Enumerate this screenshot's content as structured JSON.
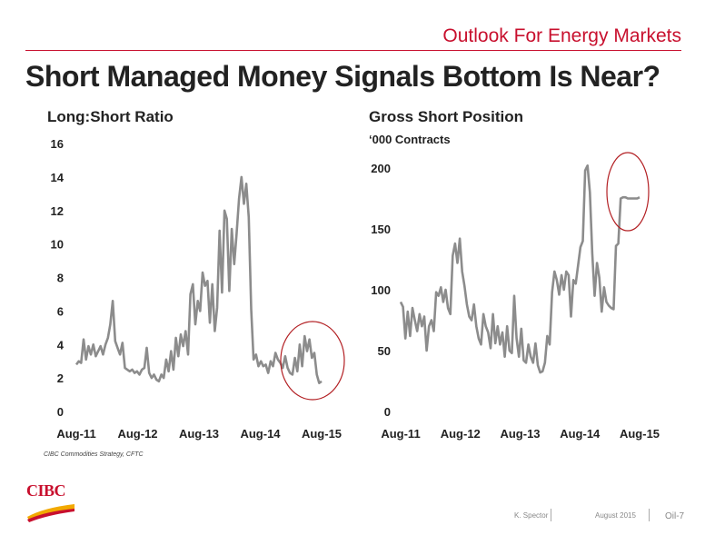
{
  "header": {
    "title": "Outlook For Energy Markets"
  },
  "slide_title": "Short Managed Money Signals Bottom Is Near?",
  "source": "CIBC Commodities Strategy, CFTC",
  "footer": {
    "author": "K. Spector",
    "date": "August 2015",
    "page": "Oil-7"
  },
  "logo": {
    "text": "CIBC"
  },
  "colors": {
    "accent": "#c8102e",
    "line": "#8c8c8c",
    "circle": "#b32024"
  },
  "chart_data": [
    {
      "type": "line",
      "title": "Long:Short Ratio",
      "subtitle": "",
      "ylim": [
        0,
        16
      ],
      "yticks": [
        0,
        2,
        4,
        6,
        8,
        10,
        12,
        14,
        16
      ],
      "xtick_labels": [
        "Aug-11",
        "Aug-12",
        "Aug-13",
        "Aug-14",
        "Aug-15"
      ],
      "x": [
        2011.58,
        2011.62,
        2011.66,
        2011.7,
        2011.74,
        2011.78,
        2011.82,
        2011.86,
        2011.9,
        2011.94,
        2011.98,
        2012.02,
        2012.06,
        2012.1,
        2012.14,
        2012.18,
        2012.22,
        2012.26,
        2012.3,
        2012.34,
        2012.38,
        2012.42,
        2012.46,
        2012.5,
        2012.54,
        2012.58,
        2012.62,
        2012.66,
        2012.7,
        2012.74,
        2012.78,
        2012.82,
        2012.86,
        2012.9,
        2012.94,
        2012.98,
        2013.02,
        2013.06,
        2013.1,
        2013.14,
        2013.18,
        2013.22,
        2013.26,
        2013.3,
        2013.34,
        2013.38,
        2013.42,
        2013.46,
        2013.5,
        2013.54,
        2013.58,
        2013.62,
        2013.66,
        2013.7,
        2013.74,
        2013.78,
        2013.82,
        2013.86,
        2013.9,
        2013.94,
        2013.98,
        2014.02,
        2014.06,
        2014.1,
        2014.14,
        2014.18,
        2014.22,
        2014.26,
        2014.3,
        2014.34,
        2014.38,
        2014.42,
        2014.46,
        2014.5,
        2014.54,
        2014.58,
        2014.62,
        2014.66,
        2014.7,
        2014.74,
        2014.78,
        2014.82,
        2014.86,
        2014.9,
        2014.94,
        2014.98,
        2015.02,
        2015.06,
        2015.1,
        2015.14,
        2015.18,
        2015.22,
        2015.26,
        2015.3,
        2015.34,
        2015.38,
        2015.42,
        2015.46,
        2015.5,
        2015.54,
        2015.58,
        2015.62
      ],
      "series": [
        {
          "values": [
            2.8,
            3.0,
            2.9,
            4.3,
            3.1,
            3.9,
            3.4,
            4.0,
            3.3,
            3.6,
            3.9,
            3.4,
            4.0,
            4.4,
            5.2,
            6.6,
            4.2,
            3.8,
            3.4,
            4.1,
            2.6,
            2.5,
            2.4,
            2.5,
            2.3,
            2.4,
            2.2,
            2.5,
            2.6,
            3.8,
            2.3,
            2.0,
            2.2,
            1.9,
            1.8,
            2.2,
            2.0,
            3.1,
            2.4,
            3.6,
            2.5,
            4.4,
            3.3,
            4.6,
            3.9,
            4.8,
            3.4,
            7.0,
            7.6,
            5.2,
            6.6,
            6.0,
            8.3,
            7.5,
            7.8,
            5.3,
            7.6,
            4.8,
            6.2,
            10.8,
            7.1,
            12.0,
            11.5,
            7.2,
            10.9,
            8.8,
            10.6,
            12.7,
            14.0,
            12.4,
            13.6,
            11.6,
            6.1,
            3.1,
            3.4,
            2.7,
            3.0,
            2.7,
            2.8,
            2.3,
            3.0,
            2.7,
            3.5,
            3.1,
            2.9,
            2.6,
            3.3,
            2.6,
            2.3,
            2.2,
            3.2,
            2.4,
            4.0,
            2.7,
            4.5,
            3.6,
            4.3,
            3.2,
            3.5,
            2.2,
            1.7,
            1.8
          ]
        }
      ]
    },
    {
      "type": "line",
      "title": "Gross Short Position",
      "subtitle": "‘000 Contracts",
      "ylim": [
        0,
        200
      ],
      "yticks": [
        0,
        50,
        100,
        150,
        200
      ],
      "xtick_labels": [
        "Aug-11",
        "Aug-12",
        "Aug-13",
        "Aug-14",
        "Aug-15"
      ],
      "x": [
        2011.58,
        2011.62,
        2011.66,
        2011.7,
        2011.74,
        2011.78,
        2011.82,
        2011.86,
        2011.9,
        2011.94,
        2011.98,
        2012.02,
        2012.06,
        2012.1,
        2012.14,
        2012.18,
        2012.22,
        2012.26,
        2012.3,
        2012.34,
        2012.38,
        2012.42,
        2012.46,
        2012.5,
        2012.54,
        2012.58,
        2012.62,
        2012.66,
        2012.7,
        2012.74,
        2012.78,
        2012.82,
        2012.86,
        2012.9,
        2012.94,
        2012.98,
        2013.02,
        2013.06,
        2013.1,
        2013.14,
        2013.18,
        2013.22,
        2013.26,
        2013.3,
        2013.34,
        2013.38,
        2013.42,
        2013.46,
        2013.5,
        2013.54,
        2013.58,
        2013.62,
        2013.66,
        2013.7,
        2013.74,
        2013.78,
        2013.82,
        2013.86,
        2013.9,
        2013.94,
        2013.98,
        2014.02,
        2014.06,
        2014.1,
        2014.14,
        2014.18,
        2014.22,
        2014.26,
        2014.3,
        2014.34,
        2014.38,
        2014.42,
        2014.46,
        2014.5,
        2014.54,
        2014.58,
        2014.62,
        2014.66,
        2014.7,
        2014.74,
        2014.78,
        2014.82,
        2014.86,
        2014.9,
        2014.94,
        2014.98,
        2015.02,
        2015.06,
        2015.1,
        2015.14,
        2015.18,
        2015.22,
        2015.26,
        2015.3,
        2015.34,
        2015.38,
        2015.42,
        2015.46,
        2015.5,
        2015.54,
        2015.58,
        2015.62
      ],
      "series": [
        {
          "values": [
            90,
            86,
            60,
            82,
            62,
            85,
            75,
            66,
            80,
            70,
            78,
            50,
            70,
            75,
            66,
            98,
            95,
            102,
            90,
            100,
            85,
            80,
            128,
            138,
            122,
            142,
            115,
            103,
            88,
            78,
            75,
            88,
            70,
            60,
            55,
            80,
            70,
            65,
            52,
            80,
            56,
            70,
            55,
            65,
            45,
            70,
            50,
            48,
            95,
            60,
            45,
            68,
            42,
            40,
            55,
            45,
            40,
            56,
            38,
            32,
            33,
            40,
            62,
            55,
            98,
            115,
            108,
            96,
            112,
            100,
            115,
            112,
            78,
            108,
            105,
            120,
            135,
            140,
            198,
            202,
            180,
            130,
            95,
            122,
            110,
            82,
            102,
            90,
            87,
            85,
            84,
            136,
            138,
            175,
            176,
            176,
            175,
            175,
            175,
            175,
            175,
            176
          ]
        }
      ]
    }
  ]
}
